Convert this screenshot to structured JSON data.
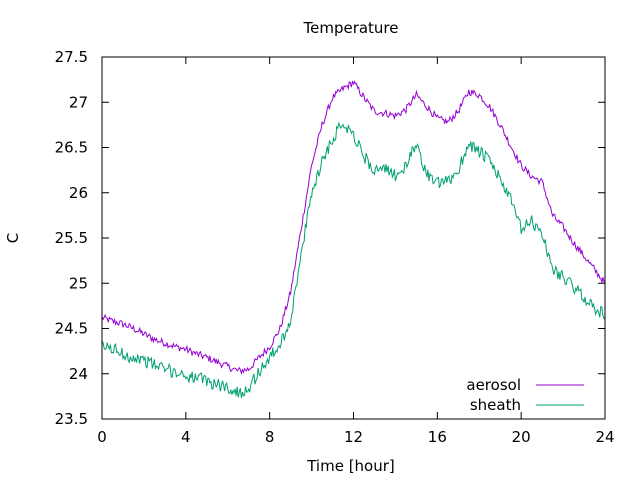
{
  "chart_data": {
    "type": "line",
    "title": "Temperature",
    "xlabel": "Time [hour]",
    "ylabel": "C",
    "xlim": [
      0,
      24
    ],
    "ylim": [
      23.5,
      27.5
    ],
    "x_ticks": [
      0,
      4,
      8,
      12,
      16,
      20,
      24
    ],
    "y_ticks": [
      23.5,
      24,
      24.5,
      25,
      25.5,
      26,
      26.5,
      27,
      27.5
    ],
    "grid": false,
    "legend_position": "bottom-right",
    "series": [
      {
        "name": "aerosol",
        "color": "#9400d3",
        "x": [
          0,
          0.5,
          1,
          1.5,
          2,
          2.5,
          3,
          3.5,
          4,
          4.5,
          5,
          5.5,
          6,
          6.5,
          7,
          7.5,
          8,
          8.5,
          9,
          9.5,
          10,
          10.5,
          11,
          11.5,
          12,
          12.5,
          13,
          13.5,
          14,
          14.5,
          15,
          15.5,
          16,
          16.5,
          17,
          17.5,
          18,
          18.5,
          19,
          19.5,
          20,
          20.5,
          21,
          21.5,
          22,
          22.5,
          23,
          23.5,
          24
        ],
        "y": [
          24.62,
          24.58,
          24.55,
          24.5,
          24.44,
          24.38,
          24.34,
          24.3,
          24.27,
          24.22,
          24.18,
          24.13,
          24.08,
          24.03,
          24.05,
          24.18,
          24.3,
          24.5,
          24.9,
          25.6,
          26.3,
          26.75,
          27.05,
          27.15,
          27.22,
          27.05,
          26.9,
          26.88,
          26.85,
          26.92,
          27.08,
          26.95,
          26.82,
          26.78,
          26.9,
          27.12,
          27.08,
          26.95,
          26.75,
          26.52,
          26.3,
          26.18,
          26.12,
          25.75,
          25.62,
          25.45,
          25.3,
          25.15,
          25.0
        ],
        "noise": 0.04
      },
      {
        "name": "sheath",
        "color": "#009e73",
        "x": [
          0,
          0.5,
          1,
          1.5,
          2,
          2.5,
          3,
          3.5,
          4,
          4.5,
          5,
          5.5,
          6,
          6.5,
          7,
          7.5,
          8,
          8.5,
          9,
          9.5,
          10,
          10.5,
          11,
          11.5,
          12,
          12.5,
          13,
          13.5,
          14,
          14.5,
          15,
          15.5,
          16,
          16.5,
          17,
          17.5,
          18,
          18.5,
          19,
          19.5,
          20,
          20.5,
          21,
          21.5,
          22,
          22.5,
          23,
          23.5,
          24
        ],
        "y": [
          24.3,
          24.28,
          24.22,
          24.18,
          24.15,
          24.1,
          24.05,
          24.02,
          23.98,
          23.95,
          23.92,
          23.88,
          23.85,
          23.78,
          23.85,
          24.02,
          24.18,
          24.32,
          24.6,
          25.3,
          26.0,
          26.35,
          26.6,
          26.78,
          26.65,
          26.4,
          26.25,
          26.25,
          26.2,
          26.28,
          26.55,
          26.2,
          26.1,
          26.12,
          26.25,
          26.55,
          26.45,
          26.35,
          26.15,
          25.92,
          25.6,
          25.68,
          25.55,
          25.15,
          25.08,
          24.95,
          24.85,
          24.72,
          24.65
        ],
        "noise": 0.07
      }
    ]
  }
}
